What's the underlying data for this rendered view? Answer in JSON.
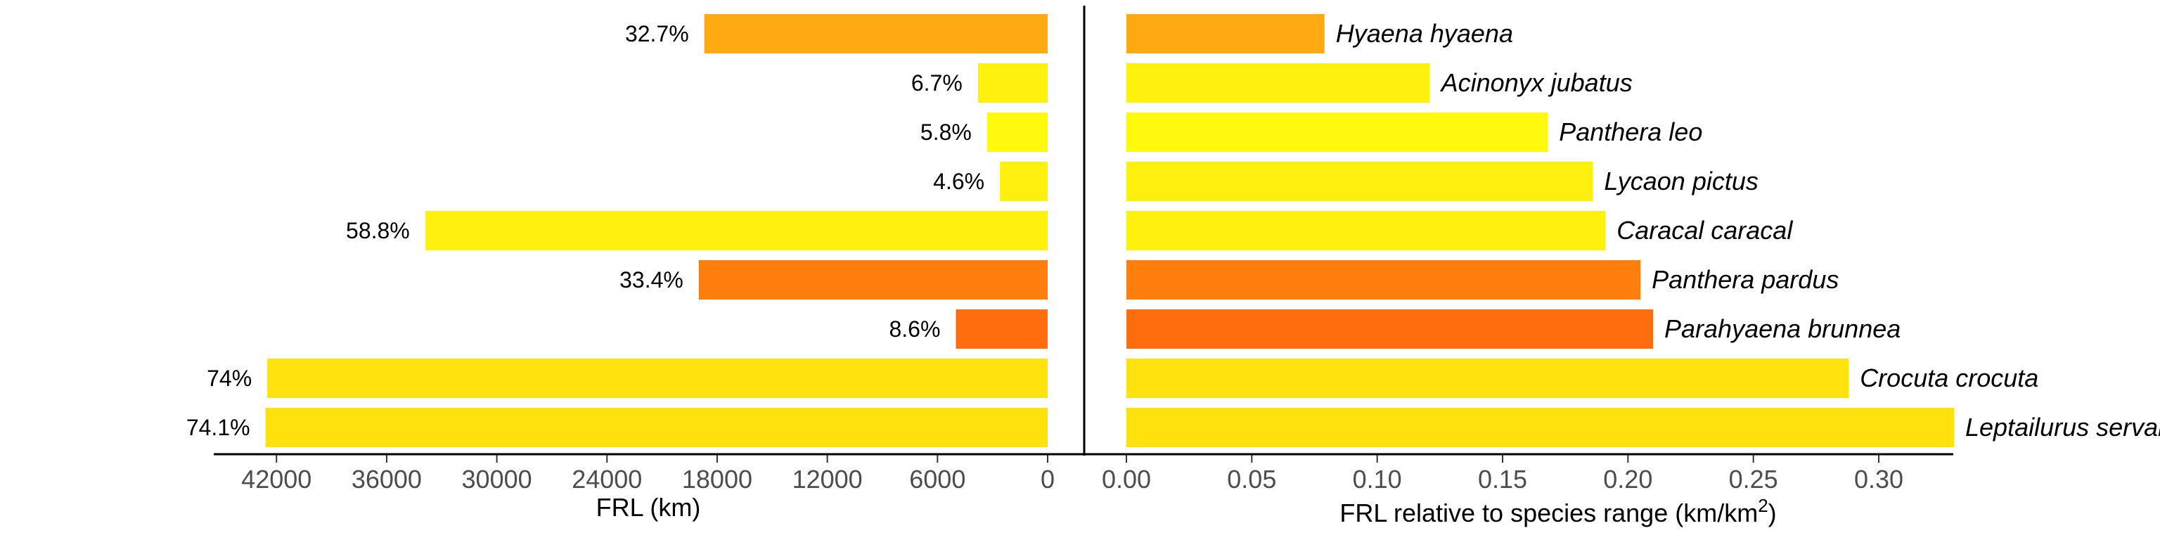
{
  "chart_data": [
    {
      "type": "bar",
      "orientation": "horizontal",
      "direction": "reversed",
      "xlabel": "FRL (km)",
      "xlim": [
        0,
        45800
      ],
      "xticks": [
        "42000",
        "36000",
        "30000",
        "24000",
        "18000",
        "12000",
        "6000",
        "0"
      ],
      "categories": [
        "Hyaena hyaena",
        "Acinonyx jubatus",
        "Panthera leo",
        "Lycaon pictus",
        "Caracal caracal",
        "Panthera pardus",
        "Parahyaena brunnea",
        "Crocuta crocuta",
        "Leptailurus serval"
      ],
      "values": [
        18700,
        3800,
        3300,
        2600,
        33900,
        19000,
        5000,
        42500,
        42600
      ],
      "labels": [
        "32.7%",
        "6.7%",
        "5.8%",
        "4.6%",
        "58.8%",
        "33.4%",
        "8.6%",
        "74%",
        "74.1%"
      ],
      "colors": [
        "#FFAA12",
        "#FFF10E",
        "#FFF90E",
        "#FFF00E",
        "#FFF00E",
        "#FF7F0E",
        "#FF6D0E",
        "#FFE20E",
        "#FFE10E"
      ]
    },
    {
      "type": "bar",
      "orientation": "horizontal",
      "xlabel_main": "FRL relative to species range (",
      "xlabel_unit": "km/km",
      "xlabel_sup": "2",
      "xlabel_close": ")",
      "xlim": [
        0,
        0.345
      ],
      "xticks": [
        "0.00",
        "0.05",
        "0.10",
        "0.15",
        "0.20",
        "0.25",
        "0.30"
      ],
      "categories": [
        "Hyaena hyaena",
        "Acinonyx jubatus",
        "Panthera leo",
        "Lycaon pictus",
        "Caracal caracal",
        "Panthera pardus",
        "Parahyaena brunnea",
        "Crocuta crocuta",
        "Leptailurus serval"
      ],
      "values": [
        0.079,
        0.121,
        0.168,
        0.186,
        0.191,
        0.205,
        0.21,
        0.288,
        0.33
      ],
      "colors": [
        "#FFAA12",
        "#FFF10E",
        "#FFF90E",
        "#FFF00E",
        "#FFF00E",
        "#FF7F0E",
        "#FF6D0E",
        "#FFE20E",
        "#FFE10E"
      ]
    }
  ]
}
